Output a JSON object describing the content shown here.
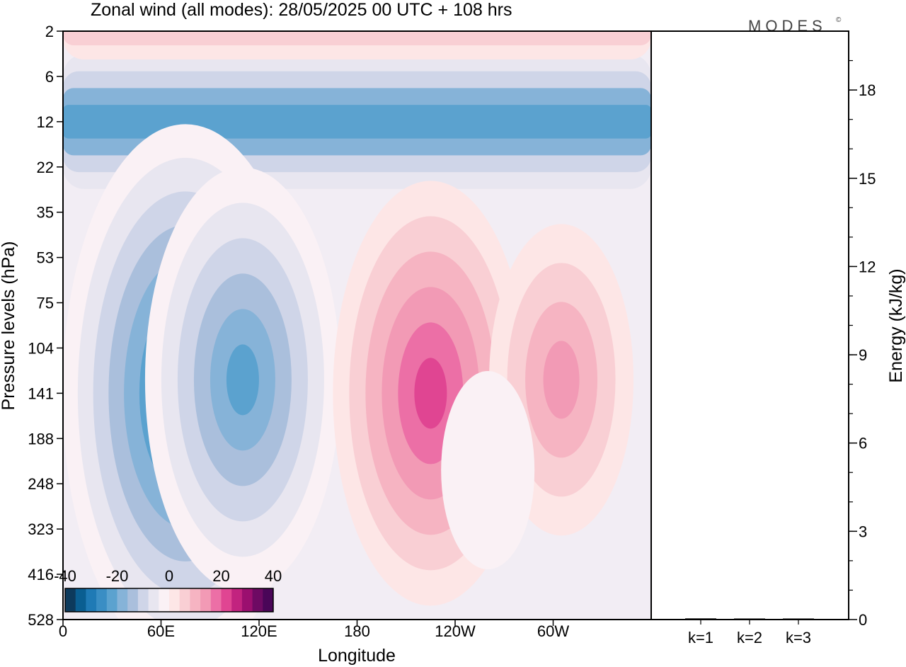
{
  "header": {
    "title": "Zonal wind (all modes):  28/05/2025  00 UTC  + 108 hrs",
    "brand": "MODES",
    "brand_mark": "©"
  },
  "colors": {
    "frame": "#000000",
    "palette": [
      "#0d3a5c",
      "#0a5e91",
      "#1f7ab5",
      "#3a8ec4",
      "#5ba2cf",
      "#86b3d8",
      "#aabfdc",
      "#cfd5e8",
      "#e8e6f0",
      "#faf1f5",
      "#fde6e6",
      "#f9cfd4",
      "#f6b4c2",
      "#f29ab5",
      "#ec6fa6",
      "#e04592",
      "#c2237f",
      "#9b0f6f",
      "#6e0a63",
      "#4a0658"
    ]
  },
  "chart_data": [
    {
      "type": "heatmap",
      "title": "Zonal wind (all modes):  28/05/2025  00 UTC  + 108 hrs",
      "xlabel": "Longitude",
      "ylabel": "Pressure levels (hPa)",
      "x_ticks": [
        "0",
        "60E",
        "120E",
        "180",
        "120W",
        "60W"
      ],
      "x_tick_lon": [
        0,
        60,
        120,
        180,
        240,
        300
      ],
      "xlim": [
        0,
        360
      ],
      "y_ticks": [
        "2",
        "6",
        "12",
        "22",
        "35",
        "53",
        "75",
        "104",
        "141",
        "188",
        "248",
        "323",
        "416",
        "528"
      ],
      "levels": [
        2,
        6,
        12,
        22,
        35,
        53,
        75,
        104,
        141,
        188,
        248,
        323,
        416,
        528
      ],
      "colorbar": {
        "ticks": [
          "-40",
          "-20",
          "0",
          "20",
          "40"
        ],
        "range": [
          -40,
          40
        ],
        "step": 4
      },
      "features": [
        {
          "kind": "band",
          "level": 12,
          "value": -24,
          "note": "easterly jet 6-22 hPa"
        },
        {
          "kind": "blob",
          "lon": 75,
          "level": 141,
          "value": -32
        },
        {
          "kind": "blob",
          "lon": 110,
          "level": 130,
          "value": -24
        },
        {
          "kind": "blob",
          "lon": 225,
          "level": 141,
          "value": 22
        },
        {
          "kind": "blob",
          "lon": 305,
          "level": 130,
          "value": 14
        },
        {
          "kind": "blob",
          "lon": 260,
          "level": 230,
          "value": -4
        },
        {
          "kind": "band",
          "level": 2,
          "value": 6,
          "note": "weak westerlies near top"
        }
      ]
    },
    {
      "type": "bar",
      "ylabel": "Energy (kJ/kg)",
      "categories": [
        "k=1",
        "k=2",
        "k=3"
      ],
      "values": [
        0.04,
        0.02,
        0.01
      ],
      "ylim": [
        0,
        20
      ],
      "y_ticks": [
        "0",
        "3",
        "6",
        "9",
        "12",
        "15",
        "18"
      ],
      "y_tick_values": [
        0,
        3,
        6,
        9,
        12,
        15,
        18
      ]
    }
  ]
}
